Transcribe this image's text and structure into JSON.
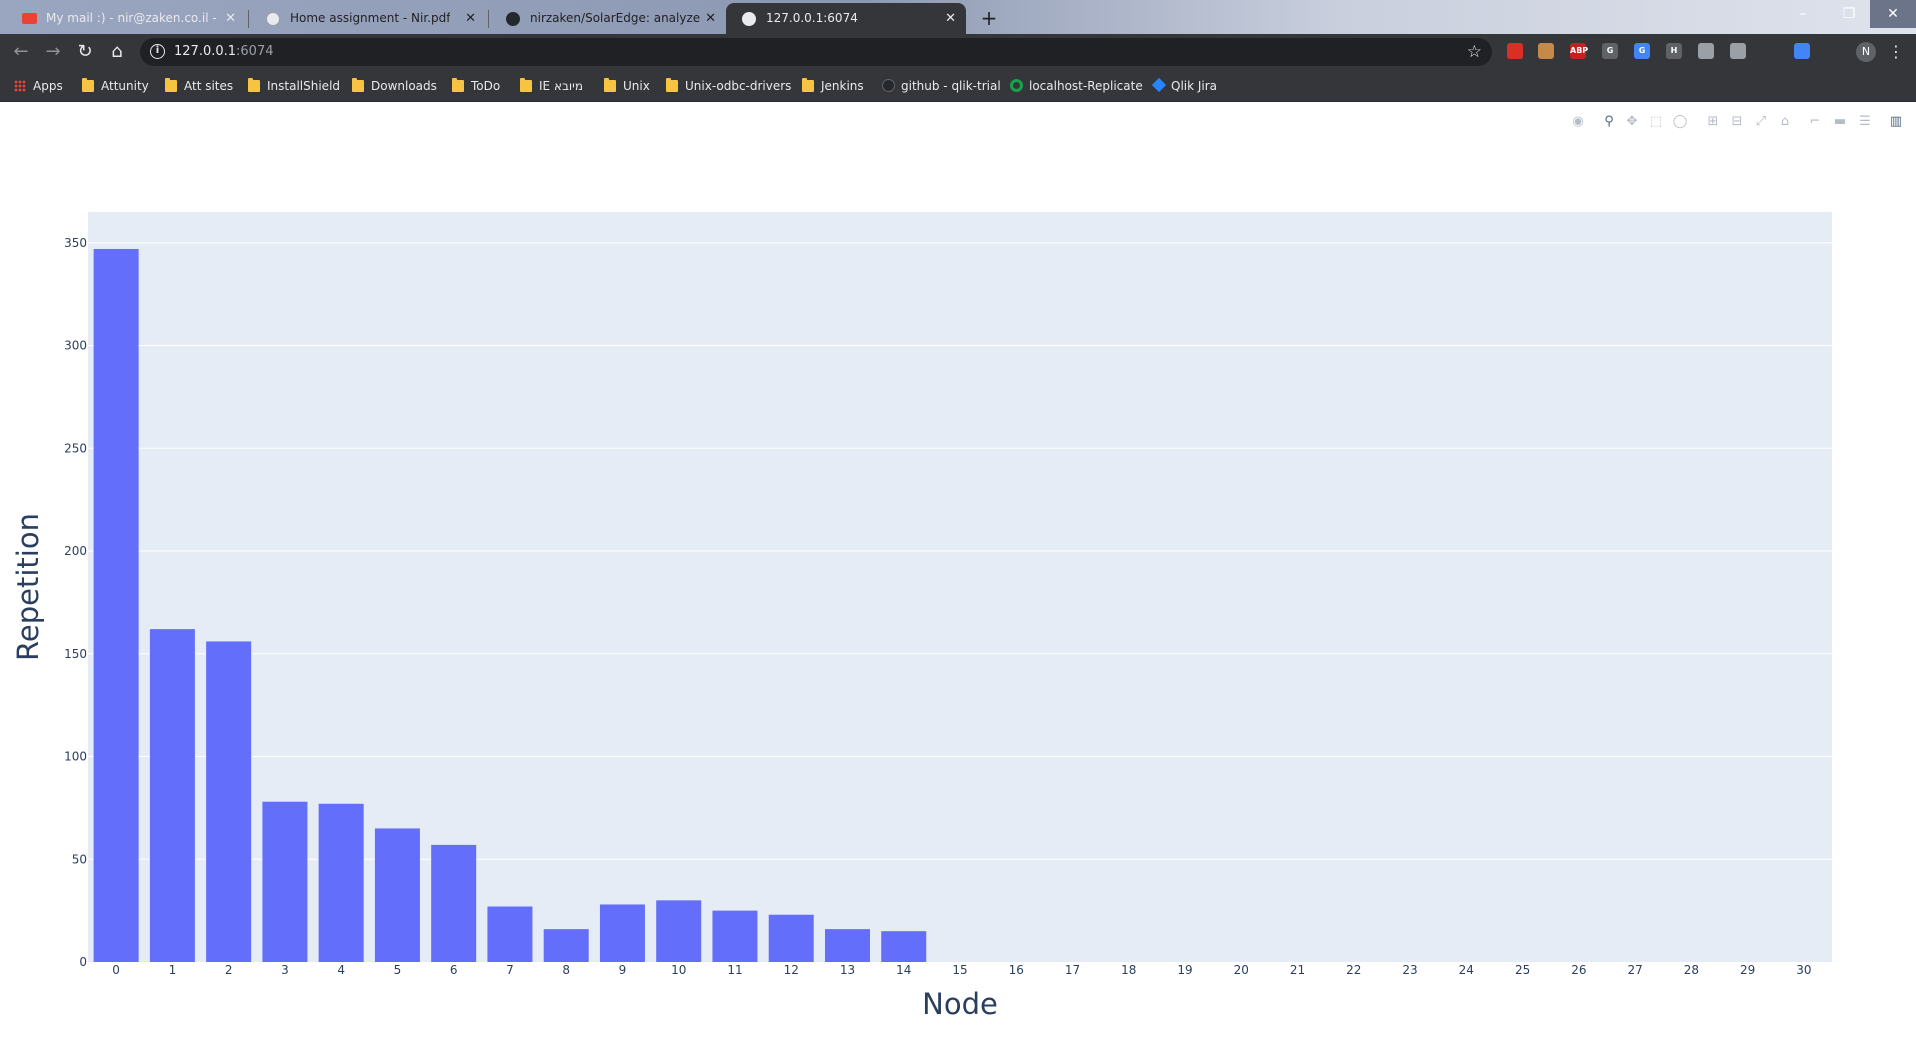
{
  "browser": {
    "tabs": [
      {
        "title": "My mail :) - nir@zaken.co.il - דואר",
        "active": false,
        "icon": "gmail-icon"
      },
      {
        "title": "Home assignment - Nir.pdf",
        "active": false,
        "icon": "globe-icon"
      },
      {
        "title": "nirzaken/SolarEdge: analyze tree",
        "active": false,
        "icon": "github-icon"
      },
      {
        "title": "127.0.0.1:6074",
        "active": true,
        "icon": "globe-icon"
      }
    ],
    "url_host": "127.0.0.1",
    "url_port": ":6074",
    "profile_initial": "N",
    "bookmarks": [
      {
        "label": "Apps",
        "icon": "apps-grid-icon"
      },
      {
        "label": "Attunity",
        "icon": "folder-icon"
      },
      {
        "label": "Att sites",
        "icon": "folder-icon"
      },
      {
        "label": "InstallShield",
        "icon": "folder-icon"
      },
      {
        "label": "Downloads",
        "icon": "folder-icon"
      },
      {
        "label": "ToDo",
        "icon": "folder-icon"
      },
      {
        "label": "IE מיובא",
        "icon": "folder-icon"
      },
      {
        "label": "Unix",
        "icon": "folder-icon"
      },
      {
        "label": "Unix-odbc-drivers",
        "icon": "folder-icon"
      },
      {
        "label": "Jenkins",
        "icon": "folder-icon"
      },
      {
        "label": "github - qlik-trial",
        "icon": "github-icon"
      },
      {
        "label": "localhost-Replicate",
        "icon": "qlik-icon"
      },
      {
        "label": "Qlik Jira",
        "icon": "jira-icon"
      }
    ],
    "extensions": [
      {
        "label": "",
        "color": "#d93025"
      },
      {
        "label": "",
        "color": "#c58a4a"
      },
      {
        "label": "ABP",
        "color": "#c5221f"
      },
      {
        "label": "G",
        "color": "#5f6368"
      },
      {
        "label": "G",
        "color": "#4285f4"
      },
      {
        "label": "H",
        "color": "#5f6368"
      },
      {
        "label": "",
        "color": "#9aa0a6"
      },
      {
        "label": "",
        "color": "#9aa0a6"
      },
      {
        "label": "",
        "color": "#35363a"
      },
      {
        "label": "",
        "color": "#4285f4"
      },
      {
        "label": "",
        "color": "#35363a"
      }
    ]
  },
  "modebar": {
    "icons": [
      "camera-icon",
      "zoom-icon",
      "pan-icon",
      "box-select-icon",
      "lasso-select-icon",
      "zoom-in-icon",
      "zoom-out-icon",
      "autoscale-icon",
      "reset-axes-icon",
      "spike-lines-icon",
      "hover-closest-icon",
      "hover-compare-icon",
      "plotly-logo-icon"
    ]
  },
  "chart_data": {
    "type": "bar",
    "title": "",
    "xlabel": "Node",
    "ylabel": "Repetition",
    "categories": [
      "0",
      "1",
      "2",
      "3",
      "4",
      "5",
      "6",
      "7",
      "8",
      "9",
      "10",
      "11",
      "12",
      "13",
      "14",
      "15",
      "16",
      "17",
      "18",
      "19",
      "20",
      "21",
      "22",
      "23",
      "24",
      "25",
      "26",
      "27",
      "28",
      "29",
      "30"
    ],
    "values": [
      347,
      162,
      156,
      78,
      77,
      65,
      57,
      27,
      16,
      28,
      30,
      25,
      23,
      16,
      15,
      0,
      0,
      0,
      0,
      0,
      0,
      0,
      0,
      0,
      0,
      0,
      0,
      0,
      0,
      0,
      0
    ],
    "ylim": [
      0,
      365
    ],
    "yticks": [
      0,
      50,
      100,
      150,
      200,
      250,
      300,
      350
    ],
    "bar_color": "#636efa",
    "plot_bg": "#e5ecf6",
    "grid": true,
    "legend": false
  }
}
